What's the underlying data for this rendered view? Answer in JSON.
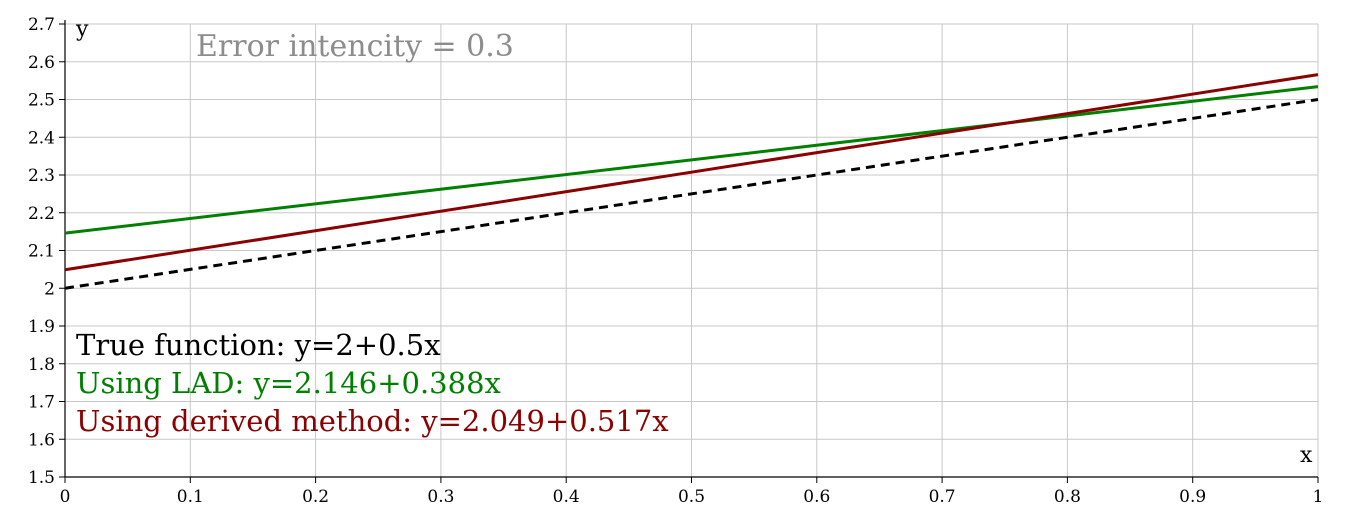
{
  "chart_data": {
    "type": "line",
    "title": "",
    "annotation": {
      "text": "Error intencity = 0.3",
      "color": "#8c8c8c"
    },
    "xlabel": "x",
    "ylabel": "y",
    "xlim": [
      0,
      1
    ],
    "ylim": [
      1.5,
      2.7
    ],
    "x_ticks": [
      0,
      0.1,
      0.2,
      0.3,
      0.4,
      0.5,
      0.6,
      0.7,
      0.8,
      0.9,
      1
    ],
    "x_tick_labels": [
      "0",
      "0.1",
      "0.2",
      "0.3",
      "0.4",
      "0.5",
      "0.6",
      "0.7",
      "0.8",
      "0.9",
      "1"
    ],
    "y_ticks": [
      1.5,
      1.6,
      1.7,
      1.8,
      1.9,
      2,
      2.1,
      2.2,
      2.3,
      2.4,
      2.5,
      2.6,
      2.7
    ],
    "y_tick_labels": [
      "1.5",
      "1.6",
      "1.7",
      "1.8",
      "1.9",
      "2",
      "2.1",
      "2.2",
      "2.3",
      "2.4",
      "2.5",
      "2.6",
      "2.7"
    ],
    "grid": true,
    "grid_color": "#c8c8c8",
    "legend_placement": "bottom-left",
    "series": [
      {
        "name": "True function: y=2+0.5x",
        "color": "#000000",
        "dashed": true,
        "x": [
          0,
          1
        ],
        "y": [
          2.0,
          2.5
        ]
      },
      {
        "name": "Using LAD: y=2.146+0.388x",
        "color": "#008000",
        "dashed": false,
        "x": [
          0,
          1
        ],
        "y": [
          2.146,
          2.534
        ]
      },
      {
        "name": "Using derived method: y=2.049+0.517x",
        "color": "#8b0000",
        "dashed": false,
        "x": [
          0,
          1
        ],
        "y": [
          2.049,
          2.566
        ]
      }
    ]
  }
}
